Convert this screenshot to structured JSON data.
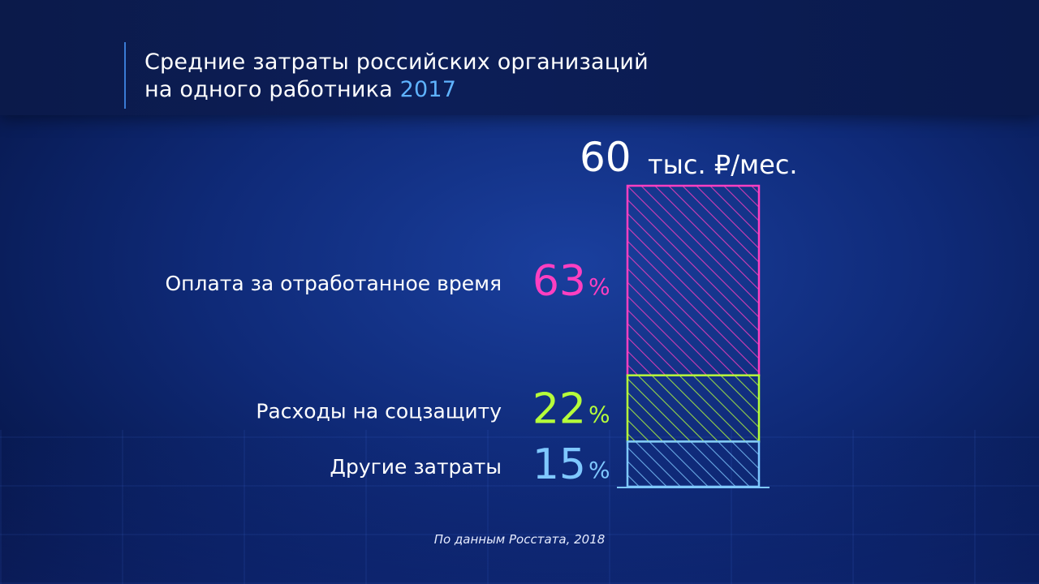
{
  "header": {
    "title_line1": "Средние затраты российских организаций",
    "title_line2": "на одного работника",
    "year": "2017"
  },
  "total": {
    "value": "60",
    "unit": "тыс. ₽/мес."
  },
  "chart_data": {
    "type": "bar",
    "stacked": true,
    "title": "Средние затраты российских организаций на одного работника 2017",
    "total_value": 60,
    "total_unit": "тыс. ₽/мес.",
    "ylim": [
      0,
      100
    ],
    "series": [
      {
        "name": "Оплата за отработанное время",
        "value": 63,
        "label": "63",
        "color": "#ff3fc1"
      },
      {
        "name": "Расходы на соцзащиту",
        "value": 22,
        "label": "22",
        "color": "#b6ff3a"
      },
      {
        "name": "Другие затраты",
        "value": 15,
        "label": "15",
        "color": "#7fc8ff"
      }
    ],
    "percent_sign": "%"
  },
  "footer": {
    "source": "По данным Росстата, 2018"
  }
}
